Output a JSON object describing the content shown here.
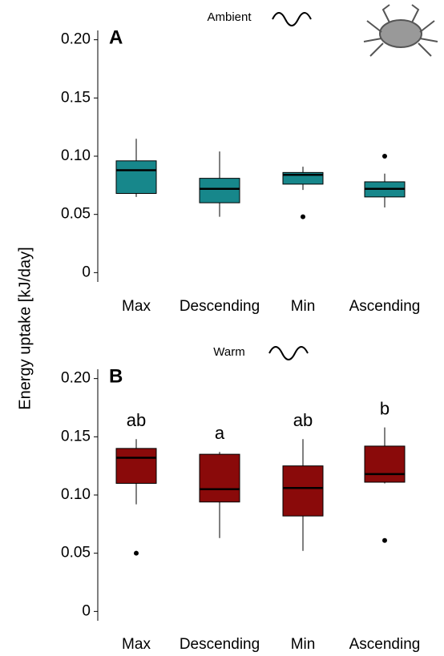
{
  "ylabel": "Energy uptake [kJ/day]",
  "chart_data": [
    {
      "type": "box",
      "title": "Ambient",
      "panel": "A",
      "color": "#17878b",
      "categories": [
        "Max",
        "Descending",
        "Min",
        "Ascending"
      ],
      "values": [
        {
          "low": 0.065,
          "q1": 0.068,
          "median": 0.088,
          "q3": 0.096,
          "high": 0.115,
          "outliers": []
        },
        {
          "low": 0.048,
          "q1": 0.06,
          "median": 0.072,
          "q3": 0.081,
          "high": 0.104,
          "outliers": []
        },
        {
          "low": 0.071,
          "q1": 0.076,
          "median": 0.084,
          "q3": 0.086,
          "high": 0.091,
          "outliers": [
            0.048
          ]
        },
        {
          "low": 0.056,
          "q1": 0.065,
          "median": 0.072,
          "q3": 0.078,
          "high": 0.085,
          "outliers": [
            0.1
          ]
        }
      ],
      "ylim": [
        -0.008,
        0.208
      ],
      "yticks": [
        0,
        {
          "value": 0.05,
          "label": "0.05"
        },
        {
          "value": 0.1,
          "label": "0.10"
        },
        {
          "value": 0.15,
          "label": "0.15"
        },
        {
          "value": 0.2,
          "label": "0.20"
        }
      ]
    },
    {
      "type": "box",
      "title": "Warm",
      "panel": "B",
      "color": "#8a0a0a",
      "categories": [
        "Max",
        "Descending",
        "Min",
        "Ascending"
      ],
      "values": [
        {
          "low": 0.092,
          "q1": 0.11,
          "median": 0.132,
          "q3": 0.14,
          "high": 0.148,
          "outliers": [
            0.05
          ]
        },
        {
          "low": 0.063,
          "q1": 0.094,
          "median": 0.105,
          "q3": 0.135,
          "high": 0.137,
          "outliers": []
        },
        {
          "low": 0.052,
          "q1": 0.082,
          "median": 0.106,
          "q3": 0.125,
          "high": 0.148,
          "outliers": []
        },
        {
          "low": 0.11,
          "q1": 0.111,
          "median": 0.118,
          "q3": 0.142,
          "high": 0.158,
          "outliers": [
            0.061
          ]
        }
      ],
      "annotations": [
        "ab",
        "a",
        "ab",
        "b"
      ],
      "ylim": [
        -0.008,
        0.208
      ],
      "yticks": [
        0,
        {
          "value": 0.05,
          "label": "0.05"
        },
        {
          "value": 0.1,
          "label": "0.10"
        },
        {
          "value": 0.15,
          "label": "0.15"
        },
        {
          "value": 0.2,
          "label": "0.20"
        }
      ]
    }
  ]
}
